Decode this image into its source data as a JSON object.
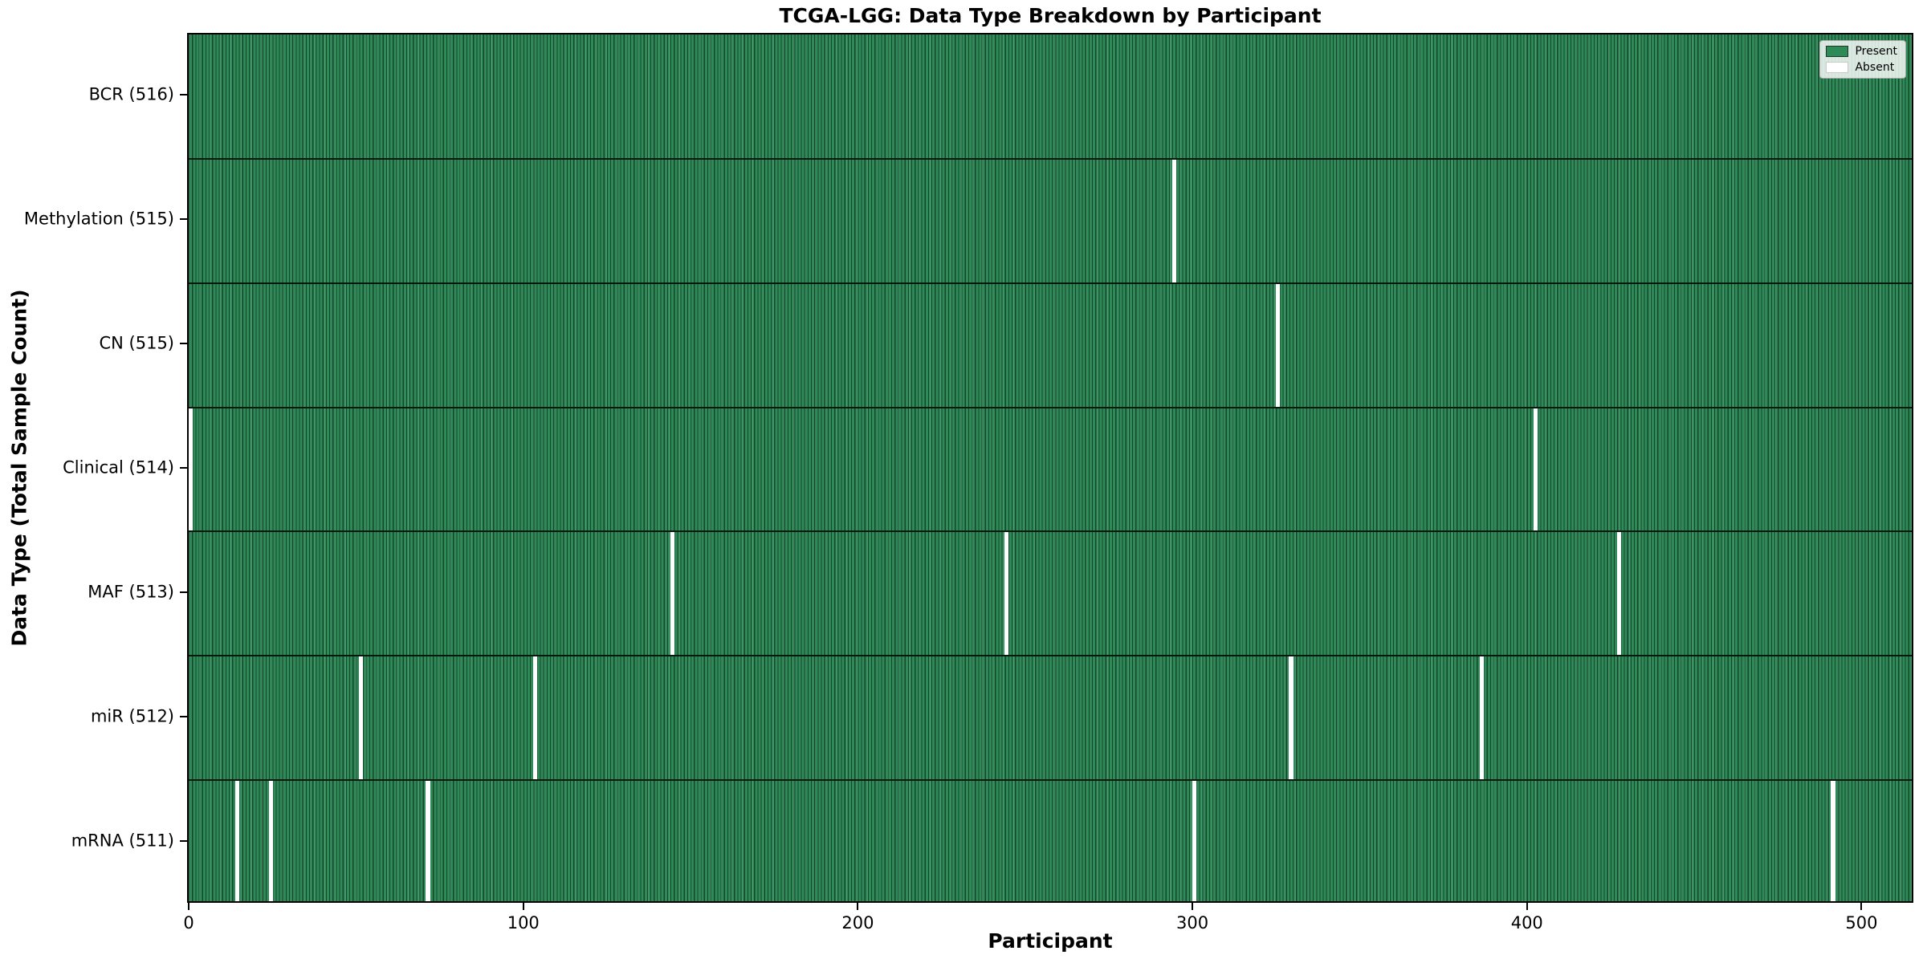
{
  "chart_data": {
    "type": "heatmap",
    "title": "TCGA-LGG: Data Type Breakdown by Participant",
    "xlabel": "Participant",
    "ylabel": "Data Type (Total Sample Count)",
    "n_participants": 516,
    "x_ticks": [
      0,
      100,
      200,
      300,
      400,
      500
    ],
    "x_range": [
      0,
      515
    ],
    "grid": false,
    "legend": {
      "position": "upper right",
      "entries": [
        {
          "label": "Present",
          "color": "#2e8b57"
        },
        {
          "label": "Absent",
          "color": "#ffffff"
        }
      ]
    },
    "rows": [
      {
        "label": "BCR (516)",
        "name": "BCR",
        "total": 516,
        "absent_participants": []
      },
      {
        "label": "Methylation (515)",
        "name": "Methylation",
        "total": 515,
        "absent_participants": [
          294
        ]
      },
      {
        "label": "CN (515)",
        "name": "CN",
        "total": 515,
        "absent_participants": [
          325
        ]
      },
      {
        "label": "Clinical (514)",
        "name": "Clinical",
        "total": 514,
        "absent_participants": [
          0,
          402
        ]
      },
      {
        "label": "MAF (513)",
        "name": "MAF",
        "total": 513,
        "absent_participants": [
          144,
          244,
          427
        ]
      },
      {
        "label": "miR (512)",
        "name": "miR",
        "total": 512,
        "absent_participants": [
          51,
          103,
          329,
          386
        ]
      },
      {
        "label": "mRNA (511)",
        "name": "mRNA",
        "total": 511,
        "absent_participants": [
          14,
          24,
          71,
          300,
          491
        ]
      }
    ],
    "colors": {
      "present": "#2e8b57",
      "absent": "#ffffff",
      "bar_edge": "#16442c",
      "row_divider": "#05190f",
      "axis": "#000000",
      "background": "#ffffff"
    }
  }
}
